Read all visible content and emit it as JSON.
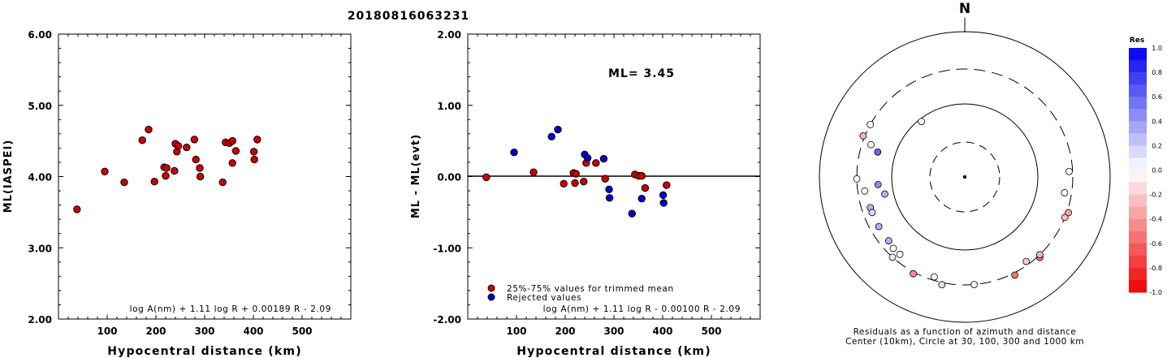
{
  "title": "20180816063231",
  "chart_data": [
    {
      "type": "scatter",
      "xlabel": "Hypocentral distance (km)",
      "ylabel": "ML(IASPEI)",
      "xlim": [
        0,
        600
      ],
      "ylim": [
        2.0,
        6.0
      ],
      "xticks": [
        "100",
        "200",
        "300",
        "400",
        "500"
      ],
      "yticks": [
        "2.00",
        "3.00",
        "4.00",
        "5.00",
        "6.00"
      ],
      "formula": "log A(nm) + 1.11 log R + 0.00189 R - 2.09",
      "series": [
        {
          "color": "#cc0000",
          "points": [
            [
              38,
              3.54
            ],
            [
              95,
              4.07
            ],
            [
              135,
              3.92
            ],
            [
              172,
              4.51
            ],
            [
              185,
              4.66
            ],
            [
              197,
              3.93
            ],
            [
              217,
              4.13
            ],
            [
              220,
              4.01
            ],
            [
              222,
              4.12
            ],
            [
              238,
              4.08
            ],
            [
              240,
              4.46
            ],
            [
              243,
              4.35
            ],
            [
              246,
              4.43
            ],
            [
              263,
              4.41
            ],
            [
              279,
              4.52
            ],
            [
              282,
              4.24
            ],
            [
              290,
              4.12
            ],
            [
              291,
              4.0
            ],
            [
              337,
              3.92
            ],
            [
              343,
              4.48
            ],
            [
              351,
              4.47
            ],
            [
              357,
              4.5
            ],
            [
              357,
              4.19
            ],
            [
              364,
              4.36
            ],
            [
              401,
              4.35
            ],
            [
              402,
              4.24
            ],
            [
              408,
              4.52
            ]
          ]
        }
      ]
    },
    {
      "type": "scatter",
      "xlabel": "Hypocentral distance (km)",
      "ylabel": "ML - ML(evt)",
      "xlim": [
        0,
        600
      ],
      "ylim": [
        -2.0,
        2.0
      ],
      "xticks": [
        "100",
        "200",
        "300",
        "400",
        "500"
      ],
      "yticks": [
        "-2.00",
        "-1.00",
        "0.00",
        "1.00",
        "2.00"
      ],
      "annotation": "ML= 3.45",
      "formula": "log A(nm) + 1.11 log R - 0.00100 R - 2.09",
      "series": [
        {
          "name": "25%-75% values for trimmed mean",
          "color": "#cc0000",
          "points": [
            [
              38,
              -0.01
            ],
            [
              135,
              0.06
            ],
            [
              197,
              -0.1
            ],
            [
              217,
              0.05
            ],
            [
              220,
              -0.09
            ],
            [
              222,
              0.04
            ],
            [
              238,
              -0.07
            ],
            [
              243,
              0.19
            ],
            [
              263,
              0.19
            ],
            [
              282,
              -0.03
            ],
            [
              343,
              0.03
            ],
            [
              351,
              0.01
            ],
            [
              357,
              0.01
            ],
            [
              364,
              -0.16
            ],
            [
              408,
              -0.12
            ]
          ]
        },
        {
          "name": "Rejected values",
          "color": "#0000cc",
          "points": [
            [
              95,
              0.34
            ],
            [
              172,
              0.56
            ],
            [
              185,
              0.66
            ],
            [
              240,
              0.31
            ],
            [
              246,
              0.26
            ],
            [
              279,
              0.25
            ],
            [
              290,
              -0.18
            ],
            [
              291,
              -0.3
            ],
            [
              337,
              -0.52
            ],
            [
              357,
              -0.31
            ],
            [
              401,
              -0.26
            ],
            [
              402,
              -0.37
            ]
          ]
        }
      ]
    },
    {
      "type": "polar-scatter",
      "north_label": "N",
      "caption_line1": "Residuals as a function of azimuth and distance",
      "caption_line2": "Center (10km), Circle at 30, 100, 300 and 1000 km",
      "rings_km": [
        30,
        100,
        300,
        1000
      ],
      "colorbar": {
        "title": "Res",
        "ticks": [
          "1.0",
          "0.8",
          "0.6",
          "0.4",
          "0.2",
          "0.0",
          "-0.2",
          "-0.4",
          "-0.6",
          "-0.8",
          "-1.0"
        ],
        "max_color": "#0000ee",
        "zero_color": "#ffffff",
        "min_color": "#ee0000"
      },
      "stations": [
        {
          "az": 322,
          "dist": 95,
          "res": 0.0
        },
        {
          "az": 299,
          "dist": 300,
          "res": 0.0
        },
        {
          "az": 292,
          "dist": 330,
          "res": -0.3
        },
        {
          "az": 289,
          "dist": 250,
          "res": 0.0
        },
        {
          "az": 286,
          "dist": 200,
          "res": 0.6
        },
        {
          "az": 269,
          "dist": 300,
          "res": 0.0
        },
        {
          "az": 265,
          "dist": 180,
          "res": 0.45
        },
        {
          "az": 262,
          "dist": 260,
          "res": 0.0
        },
        {
          "az": 258,
          "dist": 150,
          "res": 0.3
        },
        {
          "az": 252,
          "dist": 250,
          "res": 0.3
        },
        {
          "az": 249,
          "dist": 250,
          "res": 0.15
        },
        {
          "az": 240,
          "dist": 250,
          "res": 0.3
        },
        {
          "az": 230,
          "dist": 250,
          "res": 0.3
        },
        {
          "az": 225,
          "dist": 260,
          "res": 0.0
        },
        {
          "az": 222,
          "dist": 300,
          "res": -0.1
        },
        {
          "az": 220,
          "dist": 260,
          "res": 0.0
        },
        {
          "az": 208,
          "dist": 330,
          "res": -0.45
        },
        {
          "az": 197,
          "dist": 280,
          "res": 0.0
        },
        {
          "az": 192,
          "dist": 340,
          "res": -0.15
        },
        {
          "az": 175,
          "dist": 300,
          "res": 0.0
        },
        {
          "az": 153,
          "dist": 340,
          "res": -0.55
        },
        {
          "az": 144,
          "dist": 280,
          "res": -0.2
        },
        {
          "az": 137,
          "dist": 340,
          "res": -0.55
        },
        {
          "az": 136,
          "dist": 300,
          "res": -0.3
        },
        {
          "az": 112,
          "dist": 300,
          "res": -0.25
        },
        {
          "az": 109,
          "dist": 330,
          "res": -0.35
        },
        {
          "az": 99,
          "dist": 260,
          "res": 0.0
        },
        {
          "az": 87,
          "dist": 280,
          "res": 0.0
        }
      ]
    }
  ]
}
